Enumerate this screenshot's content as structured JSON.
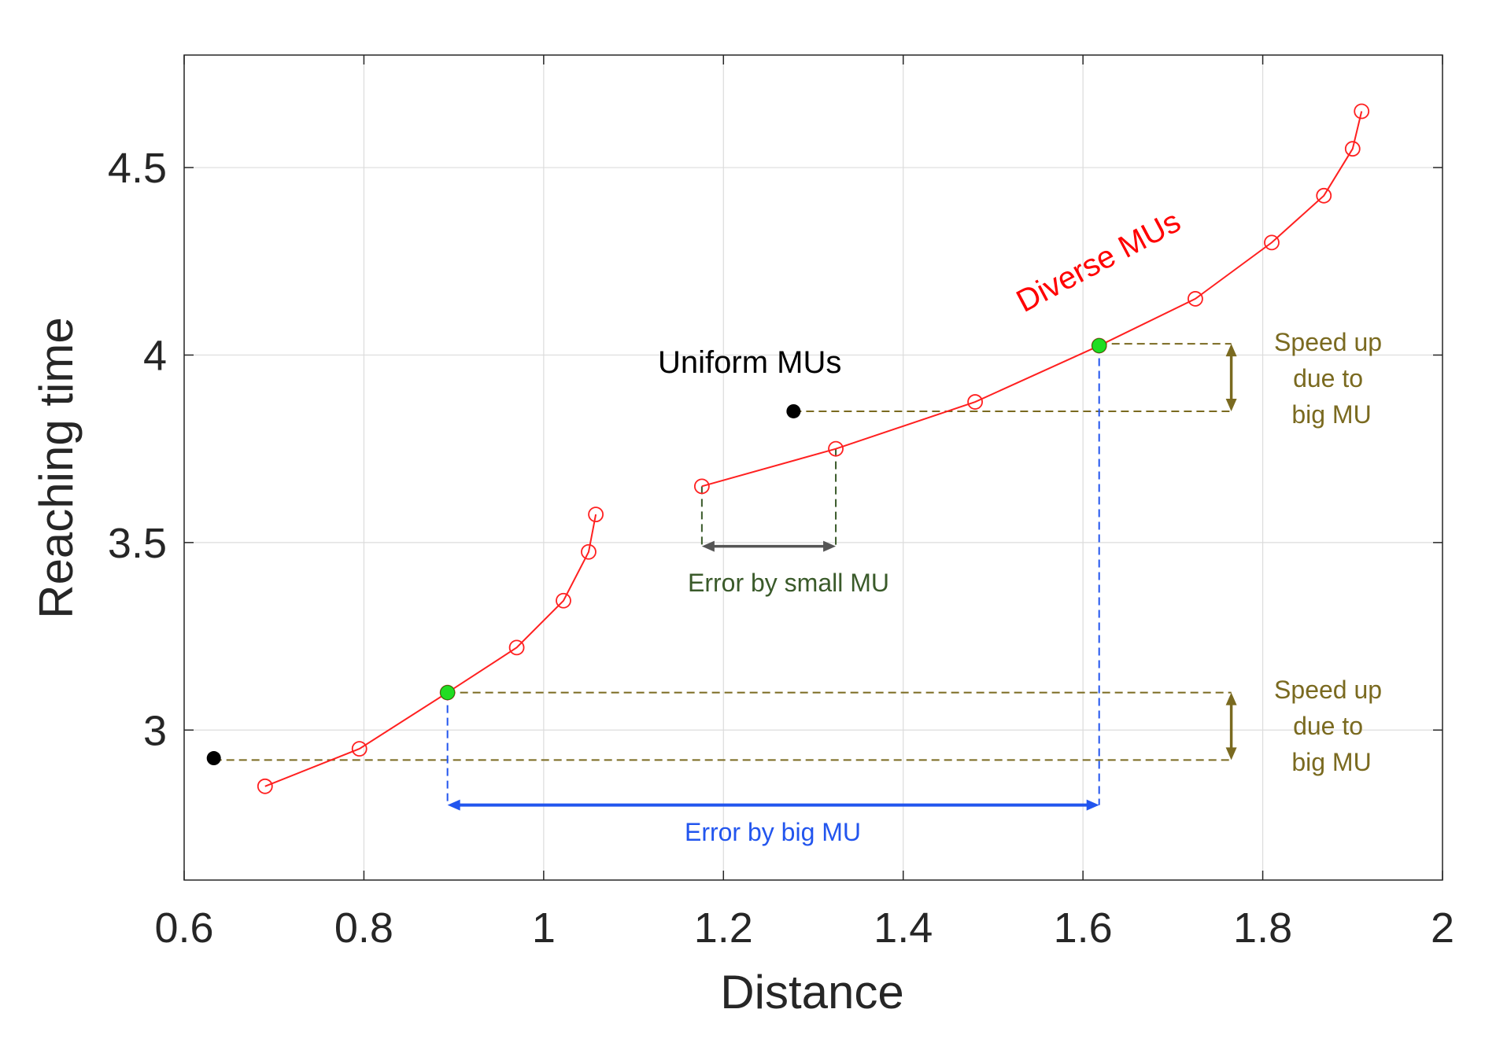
{
  "chart_data": {
    "type": "line",
    "xlabel": "Distance",
    "ylabel": "Reaching time",
    "xlim": [
      0.6,
      2.0
    ],
    "ylim": [
      2.6,
      4.8
    ],
    "x_ticks": [
      0.6,
      0.8,
      1.0,
      1.2,
      1.4,
      1.6,
      1.8,
      2.0
    ],
    "x_tick_labels": [
      "0.6",
      "0.8",
      "1",
      "1.2",
      "1.4",
      "1.6",
      "1.8",
      "2"
    ],
    "y_ticks": [
      3.0,
      3.5,
      4.0,
      4.5
    ],
    "y_tick_labels": [
      "3",
      "3.5",
      "4",
      "4.5"
    ],
    "grid": true,
    "series": [
      {
        "name": "Diverse MUs",
        "color": "#ff2020",
        "marker": "open-circle",
        "segments": [
          {
            "points": [
              [
                0.69,
                2.85
              ],
              [
                0.795,
                2.95
              ],
              [
                0.893,
                3.1
              ],
              [
                0.97,
                3.22
              ],
              [
                1.022,
                3.345
              ],
              [
                1.05,
                3.475
              ],
              [
                1.058,
                3.575
              ]
            ]
          },
          {
            "points": [
              [
                1.176,
                3.65
              ],
              [
                1.325,
                3.75
              ],
              [
                1.48,
                3.875
              ],
              [
                1.618,
                4.025
              ],
              [
                1.725,
                4.15
              ],
              [
                1.81,
                4.3
              ],
              [
                1.868,
                4.425
              ],
              [
                1.9,
                4.55
              ],
              [
                1.91,
                4.65
              ]
            ]
          }
        ]
      }
    ],
    "special_points": {
      "uniform": {
        "color": "#000000",
        "points": [
          [
            0.633,
            2.925
          ],
          [
            1.278,
            3.85
          ]
        ]
      },
      "highlight": {
        "color": "#22dd22",
        "points": [
          [
            0.893,
            3.1
          ],
          [
            1.618,
            4.025
          ]
        ]
      }
    },
    "guides": {
      "speed_top": {
        "color": "#7a6a20",
        "x_end": 1.765,
        "y_high": 4.03,
        "y_low": 3.85
      },
      "speed_bottom": {
        "color": "#7a6a20",
        "x_end": 1.765,
        "y_high": 3.1,
        "y_low": 2.92
      },
      "small_error": {
        "color": "#3a5a2a",
        "arrow_color": "#555555",
        "x1": 1.176,
        "x2": 1.325,
        "y": 3.49
      },
      "big_error": {
        "color": "#2255ee",
        "x1": 0.893,
        "x2": 1.618,
        "y": 2.8
      }
    }
  },
  "annotations": {
    "diverse": {
      "text": "Diverse MUs",
      "color": "#ff0000"
    },
    "uniform": {
      "text": "Uniform MUs",
      "color": "#000000"
    },
    "speed_top": {
      "lines": [
        "Speed up",
        "due to",
        "big MU"
      ],
      "color": "#7a6a20"
    },
    "speed_bottom": {
      "lines": [
        "Speed up",
        "due to",
        "big MU"
      ],
      "color": "#7a6a20"
    },
    "small_error": {
      "text": "Error by small MU",
      "color": "#3a5a2a"
    },
    "big_error": {
      "text": "Error by big MU",
      "color": "#2255ee"
    }
  }
}
